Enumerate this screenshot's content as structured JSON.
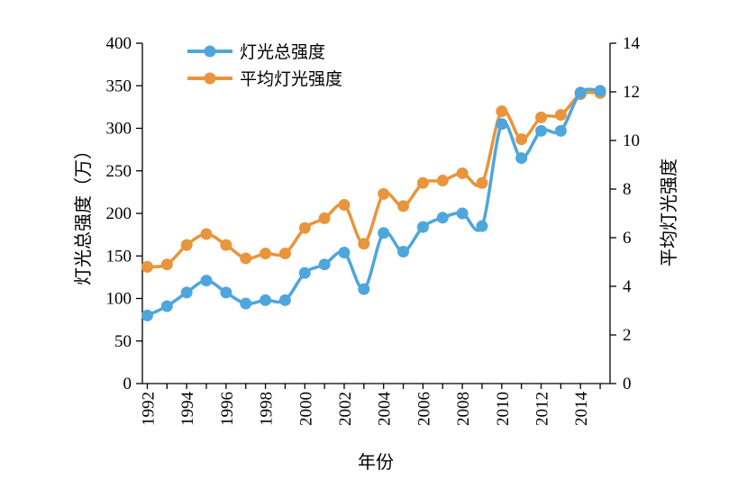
{
  "chart_data": {
    "type": "line",
    "xlabel": "年份",
    "ylabel": "灯光总强度（万）",
    "y2label": "平均灯光强度",
    "ylim": [
      0,
      400
    ],
    "y2lim": [
      0,
      14
    ],
    "yticks": [
      "0",
      "50",
      "100",
      "150",
      "200",
      "250",
      "300",
      "350",
      "400"
    ],
    "y2ticks": [
      "0",
      "2",
      "4",
      "6",
      "8",
      "10",
      "12",
      "14"
    ],
    "xticks": [
      "1992",
      "1994",
      "1996",
      "1998",
      "2000",
      "2002",
      "2004",
      "2006",
      "2008",
      "2010",
      "2012",
      "2014"
    ],
    "grid": false,
    "legend_position": "top-left",
    "x": [
      1992,
      1993,
      1994,
      1995,
      1996,
      1997,
      1998,
      1999,
      2000,
      2001,
      2002,
      2003,
      2004,
      2005,
      2006,
      2007,
      2008,
      2009,
      2010,
      2011,
      2012,
      2013,
      2014,
      2015
    ],
    "series": [
      {
        "name": "灯光总强度",
        "axis": "left",
        "color": "#4ea6dc",
        "values": [
          80,
          91,
          107,
          121,
          107,
          94,
          98,
          98,
          130,
          140,
          154,
          111,
          177,
          155,
          184,
          195,
          200,
          185,
          305,
          265,
          297,
          297,
          342,
          344
        ]
      },
      {
        "name": "平均灯光强度",
        "axis": "right",
        "color": "#e8953c",
        "values": [
          4.8,
          4.9,
          5.7,
          6.15,
          5.7,
          5.15,
          5.35,
          5.35,
          6.4,
          6.8,
          7.35,
          5.75,
          7.8,
          7.3,
          8.25,
          8.35,
          8.65,
          8.25,
          11.2,
          10.05,
          10.95,
          11.05,
          11.9,
          11.95
        ]
      }
    ]
  }
}
